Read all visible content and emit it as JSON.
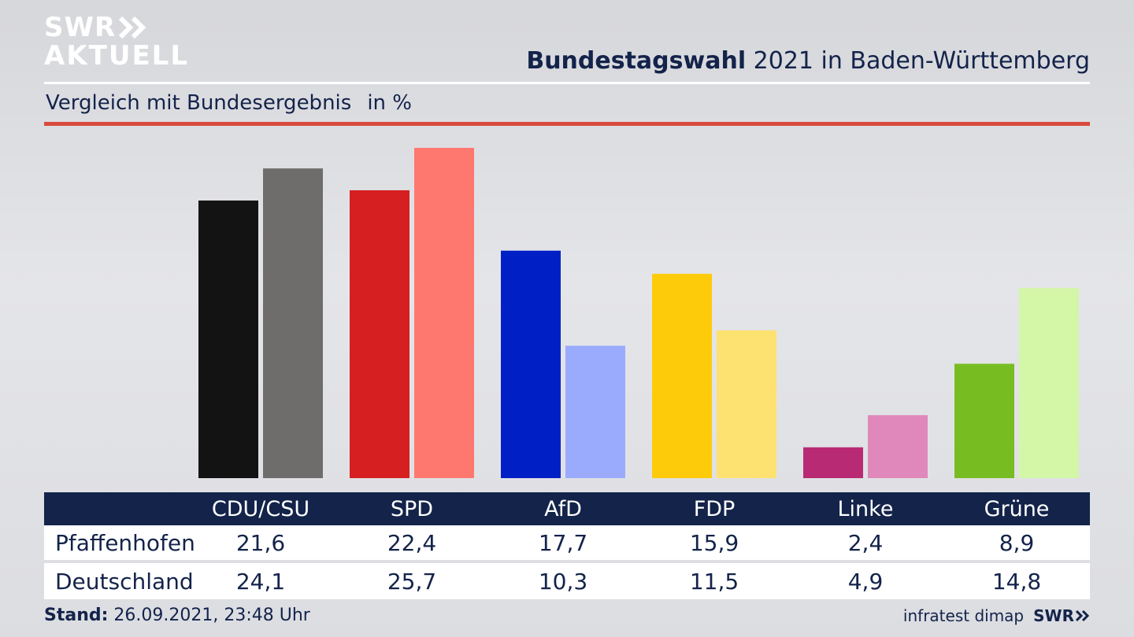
{
  "header": {
    "logo_line1": "SWR",
    "logo_line2": "AKTUELL",
    "title_bold": "Bundestagswahl",
    "title_rest": " 2021 in Baden-Württemberg",
    "subtitle": "Vergleich mit Bundesergebnis",
    "unit": "in %"
  },
  "chart_data": {
    "type": "bar",
    "title": "Bundestagswahl 2021 in Baden-Württemberg",
    "subtitle": "Vergleich mit Bundesergebnis in %",
    "categories": [
      "CDU/CSU",
      "SPD",
      "AfD",
      "FDP",
      "Linke",
      "Grüne"
    ],
    "series": [
      {
        "name": "Pfaffenhofen",
        "values": [
          21.6,
          22.4,
          17.7,
          15.9,
          2.4,
          8.9
        ],
        "colors": [
          "#131313",
          "#d51f20",
          "#0020c6",
          "#fdcb0a",
          "#b92a74",
          "#77bd21"
        ]
      },
      {
        "name": "Deutschland",
        "values": [
          24.1,
          25.7,
          10.3,
          11.5,
          4.9,
          14.8
        ],
        "colors": [
          "#6e6d6b",
          "#ff7870",
          "#9aabfd",
          "#fde171",
          "#e088bb",
          "#d3f6a7"
        ]
      }
    ],
    "ylim": [
      0,
      25.7
    ],
    "grid": false
  },
  "table": {
    "header": [
      "CDU/CSU",
      "SPD",
      "AfD",
      "FDP",
      "Linke",
      "Grüne"
    ],
    "rows": [
      {
        "label": "Pfaffenhofen",
        "values": [
          "21,6",
          "22,4",
          "17,7",
          "15,9",
          "2,4",
          "8,9"
        ]
      },
      {
        "label": "Deutschland",
        "values": [
          "24,1",
          "25,7",
          "10,3",
          "11,5",
          "4,9",
          "14,8"
        ]
      }
    ]
  },
  "footer": {
    "stand_label": "Stand:",
    "stand_value": " 26.09.2021, 23:48 Uhr",
    "source": "infratest dimap",
    "brand": "SWR"
  },
  "colors": {
    "navy": "#13234a",
    "accent_red": "#d84a3e"
  }
}
